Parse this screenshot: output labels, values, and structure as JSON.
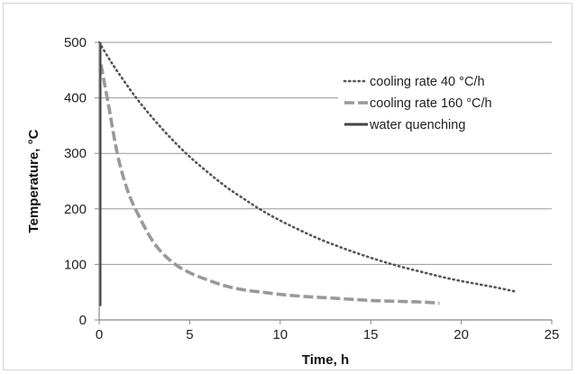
{
  "chart_data": {
    "type": "line",
    "xlabel": "Time, h",
    "ylabel": "Temperature, °C",
    "xlim": [
      0,
      25
    ],
    "ylim": [
      0,
      500
    ],
    "xticks": [
      0,
      5,
      10,
      15,
      20,
      25
    ],
    "yticks": [
      0,
      100,
      200,
      300,
      400,
      500
    ],
    "grid": "horizontal",
    "legend_position": "top-right",
    "series": [
      {
        "name": "cooling rate 40 °C/h",
        "style": "dotted",
        "color": "#555555",
        "x": [
          0,
          0.5,
          1,
          2,
          3,
          4,
          5,
          6,
          7,
          8,
          9,
          10,
          11,
          12,
          13,
          14,
          15,
          16,
          17,
          18,
          19,
          20,
          21,
          22,
          23
        ],
        "y": [
          500,
          473,
          448,
          402,
          362,
          326,
          294,
          266,
          240,
          218,
          197,
          179,
          163,
          148,
          135,
          123,
          112,
          102,
          93,
          85,
          77,
          70,
          64,
          58,
          51
        ]
      },
      {
        "name": "cooling rate 160 °C/h",
        "style": "dashed",
        "color": "#999999",
        "x": [
          0.1,
          0.5,
          1,
          1.5,
          2,
          3,
          4,
          5,
          6,
          7,
          8,
          9,
          10,
          11,
          12,
          13,
          14,
          15,
          16,
          17,
          18,
          18.8
        ],
        "y": [
          460,
          390,
          300,
          240,
          200,
          140,
          105,
          85,
          72,
          61,
          54,
          50,
          46,
          43,
          41,
          39,
          37,
          35,
          34,
          33,
          32,
          30
        ]
      },
      {
        "name": "water quenching",
        "style": "solid",
        "color": "#444444",
        "x": [
          0.05,
          0.05
        ],
        "y": [
          500,
          25
        ]
      }
    ]
  }
}
